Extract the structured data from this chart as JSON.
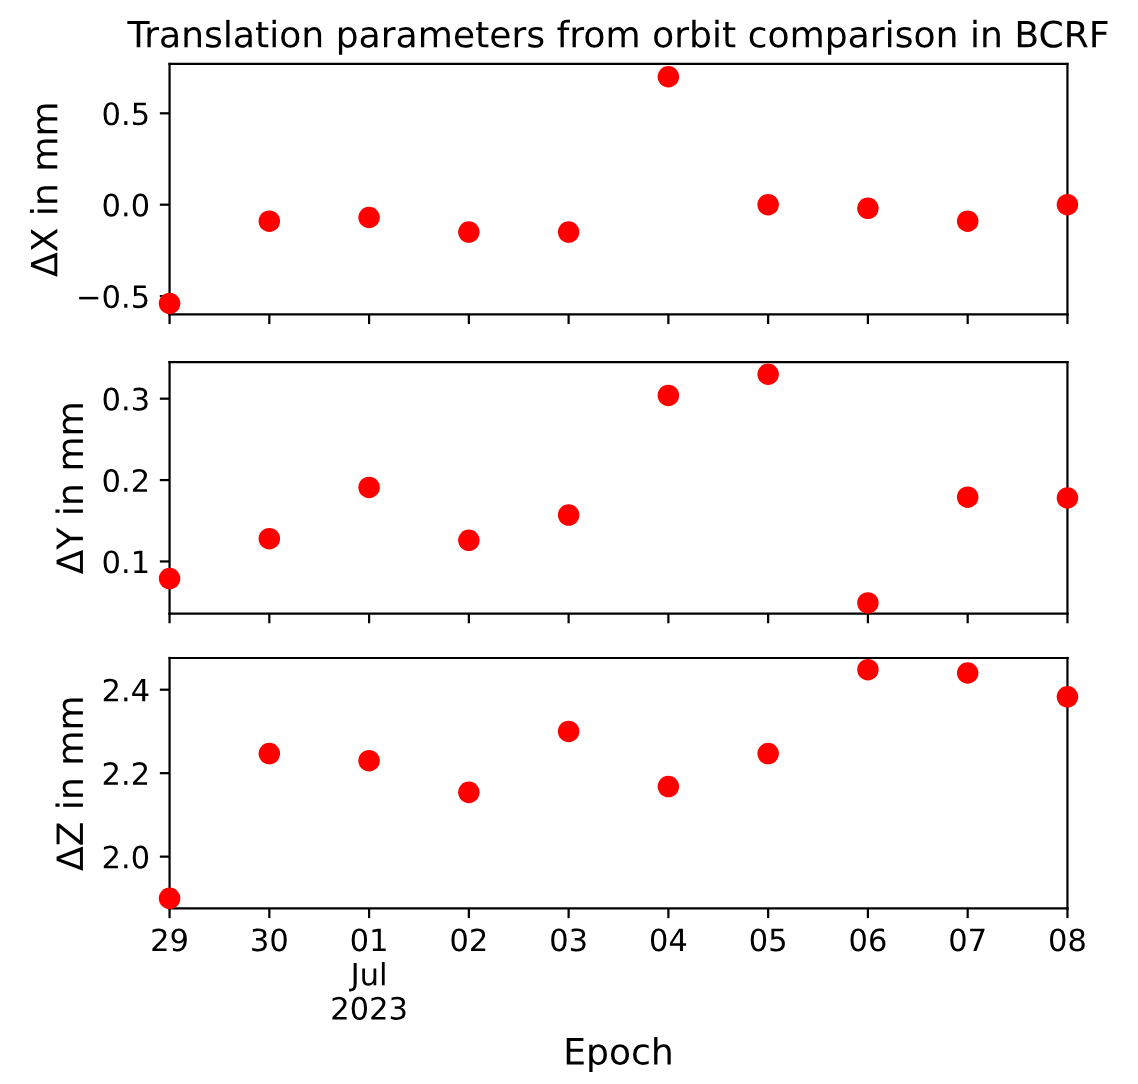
{
  "chart_data": [
    {
      "type": "scatter",
      "title": "Translation parameters from orbit comparison in BCRF",
      "ylabel": "ΔX in mm",
      "x": [
        "2023-06-29",
        "2023-06-30",
        "2023-07-01",
        "2023-07-02",
        "2023-07-03",
        "2023-07-04",
        "2023-07-05",
        "2023-07-06",
        "2023-07-07",
        "2023-07-08"
      ],
      "series": [
        {
          "color": "#ff0000",
          "values": [
            -0.54,
            -0.09,
            -0.07,
            -0.15,
            -0.15,
            0.7,
            0.0,
            -0.02,
            -0.09,
            0.0
          ]
        }
      ],
      "xlim": [
        "2023-06-29",
        "2023-07-08"
      ],
      "xticks": [
        {
          "value": "2023-06-29",
          "label": null
        },
        {
          "value": "2023-06-30",
          "label": null
        },
        {
          "value": "2023-07-01",
          "label": null
        },
        {
          "value": "2023-07-02",
          "label": null
        },
        {
          "value": "2023-07-03",
          "label": null
        },
        {
          "value": "2023-07-04",
          "label": null
        },
        {
          "value": "2023-07-05",
          "label": null
        },
        {
          "value": "2023-07-06",
          "label": null
        },
        {
          "value": "2023-07-07",
          "label": null
        },
        {
          "value": "2023-07-08",
          "label": null
        }
      ],
      "ylim": [
        -0.6,
        0.77
      ],
      "yticks": [
        {
          "value": -0.5,
          "label": "−0.5"
        },
        {
          "value": 0,
          "label": "0.0"
        },
        {
          "value": 0.5,
          "label": "0.5"
        }
      ],
      "tick_labels": "y",
      "marker": "circle",
      "grid": false,
      "legend": false
    },
    {
      "type": "scatter",
      "ylabel": "ΔY in mm",
      "x": [
        "2023-06-29",
        "2023-06-30",
        "2023-07-01",
        "2023-07-02",
        "2023-07-03",
        "2023-07-04",
        "2023-07-05",
        "2023-07-06",
        "2023-07-07",
        "2023-07-08"
      ],
      "series": [
        {
          "color": "#ff0000",
          "values": [
            0.079,
            0.128,
            0.191,
            0.126,
            0.157,
            0.304,
            0.33,
            0.049,
            0.179,
            0.178
          ]
        }
      ],
      "xlim": [
        "2023-06-29",
        "2023-07-08"
      ],
      "xticks": [
        {
          "value": "2023-06-29",
          "label": null
        },
        {
          "value": "2023-06-30",
          "label": null
        },
        {
          "value": "2023-07-01",
          "label": null
        },
        {
          "value": "2023-07-02",
          "label": null
        },
        {
          "value": "2023-07-03",
          "label": null
        },
        {
          "value": "2023-07-04",
          "label": null
        },
        {
          "value": "2023-07-05",
          "label": null
        },
        {
          "value": "2023-07-06",
          "label": null
        },
        {
          "value": "2023-07-07",
          "label": null
        },
        {
          "value": "2023-07-08",
          "label": null
        }
      ],
      "ylim": [
        0.036,
        0.345
      ],
      "yticks": [
        0.1,
        0.2,
        0.3
      ],
      "tick_labels": "y",
      "marker": "circle",
      "grid": false,
      "legend": false
    },
    {
      "type": "scatter",
      "ylabel": "ΔZ in mm",
      "xlabel": "Epoch",
      "x": [
        "2023-06-29",
        "2023-06-30",
        "2023-07-01",
        "2023-07-02",
        "2023-07-03",
        "2023-07-04",
        "2023-07-05",
        "2023-07-06",
        "2023-07-07",
        "2023-07-08"
      ],
      "series": [
        {
          "color": "#ff0000",
          "values": [
            1.9,
            2.247,
            2.23,
            2.154,
            2.3,
            2.168,
            2.247,
            2.448,
            2.44,
            2.383
          ]
        }
      ],
      "xlim": [
        "2023-06-29",
        "2023-07-08"
      ],
      "xticks": [
        {
          "value": "2023-06-29",
          "label": "29"
        },
        {
          "value": "2023-06-30",
          "label": "30"
        },
        {
          "value": "2023-07-01",
          "label": "01\nJul\n2023"
        },
        {
          "value": "2023-07-02",
          "label": "02"
        },
        {
          "value": "2023-07-03",
          "label": "03"
        },
        {
          "value": "2023-07-04",
          "label": "04"
        },
        {
          "value": "2023-07-05",
          "label": "05"
        },
        {
          "value": "2023-07-06",
          "label": "06"
        },
        {
          "value": "2023-07-07",
          "label": "07"
        },
        {
          "value": "2023-07-08",
          "label": "08"
        }
      ],
      "ylim": [
        1.876,
        2.476
      ],
      "yticks": [
        {
          "value": 2.0,
          "label": "2.0"
        },
        {
          "value": 2.2,
          "label": "2.2"
        },
        {
          "value": 2.4,
          "label": "2.4"
        }
      ],
      "marker": "circle",
      "grid": false,
      "legend": false
    }
  ]
}
